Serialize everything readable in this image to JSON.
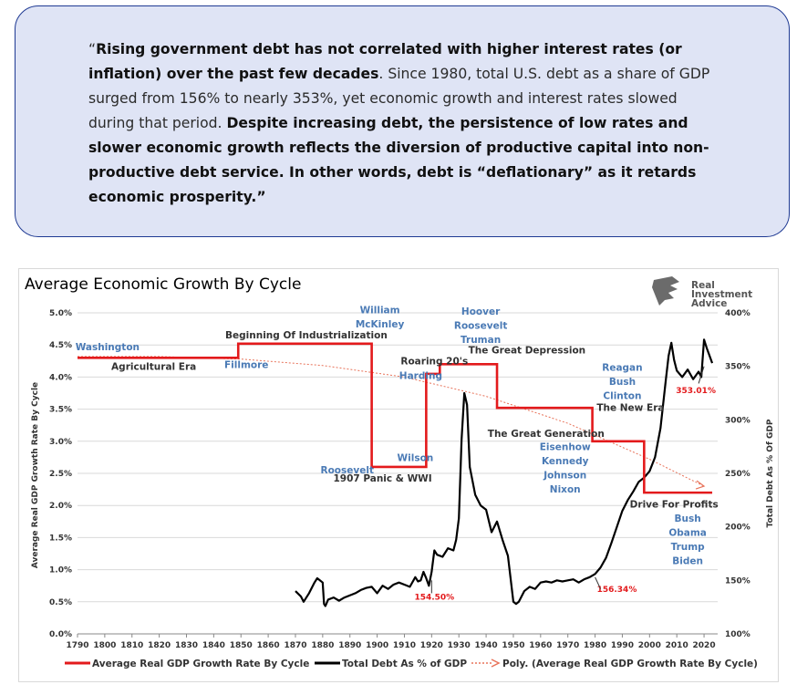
{
  "quote": {
    "open_mark": "“",
    "bold1": "Rising government debt has not correlated with higher interest rates (or inflation) over the past few decades",
    "normal1": ". Since 1980, total U.S. debt as a share of GDP surged from 156% to nearly 353%, yet economic growth and interest rates slowed during that period. ",
    "bold2": "Despite increasing debt, the persistence of low rates and slower economic growth reflects the diversion of productive capital into non-productive debt service. In other words, debt is “deflationary” as it retards economic prosperity.”"
  },
  "logo": {
    "line1": "Real",
    "line2": "Investment",
    "line3": "Advice"
  },
  "colors": {
    "gdp": "#e31a1c",
    "debt": "#000000",
    "poly": "#e8735a",
    "president": "#4a7ab5",
    "era": "#333333",
    "highlight": "#e31a1c"
  },
  "chart_data": {
    "type": "line",
    "title": "Average Economic Growth By Cycle",
    "ylabel": "Average Real GDP Growth Rate By Cycle",
    "y2label": "Total Debt As % Of GDP",
    "xlim": [
      1790,
      2025
    ],
    "ylim": [
      0,
      5
    ],
    "y2lim": [
      100,
      400
    ],
    "x_ticks": [
      "1790",
      "1800",
      "1810",
      "1820",
      "1830",
      "1840",
      "1850",
      "1860",
      "1870",
      "1880",
      "1890",
      "1900",
      "1910",
      "1920",
      "1930",
      "1940",
      "1950",
      "1960",
      "1970",
      "1980",
      "1990",
      "2000",
      "2010",
      "2020"
    ],
    "y_ticks": [
      "0.0%",
      "0.5%",
      "1.0%",
      "1.5%",
      "2.0%",
      "2.5%",
      "3.0%",
      "3.5%",
      "4.0%",
      "4.5%",
      "5.0%"
    ],
    "y2_ticks": [
      "100%",
      "150%",
      "200%",
      "250%",
      "300%",
      "350%",
      "400%"
    ],
    "series": [
      {
        "name": "Average Real GDP Growth Rate By Cycle",
        "axis": "left",
        "step": true,
        "x": [
          1790,
          1849,
          1849,
          1898,
          1898,
          1918,
          1918,
          1923,
          1923,
          1944,
          1944,
          1979,
          1979,
          1998,
          1998,
          2023
        ],
        "y": [
          4.3,
          4.3,
          4.52,
          4.52,
          2.6,
          2.6,
          4.05,
          4.05,
          4.2,
          4.2,
          3.52,
          3.52,
          3.0,
          3.0,
          2.2,
          2.2
        ]
      },
      {
        "name": "Total Debt As % of GDP",
        "axis": "right",
        "x": [
          1870,
          1872,
          1873,
          1875,
          1877,
          1878,
          1880,
          1880.5,
          1881,
          1882,
          1884,
          1886,
          1888,
          1890,
          1892,
          1894,
          1896,
          1898,
          1900,
          1902,
          1904,
          1906,
          1908,
          1910,
          1912,
          1914,
          1915,
          1916,
          1917,
          1918,
          1919,
          1920,
          1921,
          1922,
          1924,
          1926,
          1928,
          1929,
          1930,
          1931,
          1932,
          1933,
          1934,
          1936,
          1938,
          1940,
          1942,
          1944,
          1946,
          1948,
          1950,
          1951,
          1952,
          1954,
          1956,
          1958,
          1960,
          1962,
          1964,
          1966,
          1968,
          1970,
          1972,
          1974,
          1976,
          1978,
          1980,
          1982,
          1984,
          1986,
          1988,
          1990,
          1992,
          1994,
          1996,
          1998,
          2000,
          2002,
          2004,
          2006,
          2007,
          2008,
          2009,
          2010,
          2012,
          2014,
          2016,
          2018,
          2019,
          2020,
          2021,
          2022,
          2023
        ],
        "y": [
          140,
          135,
          130,
          138,
          148,
          152,
          148,
          128,
          126,
          132,
          134,
          131,
          134,
          136,
          138,
          141,
          143,
          144,
          138,
          145,
          142,
          146,
          148,
          146,
          144,
          153,
          149,
          150,
          158,
          152,
          145,
          158,
          178,
          174,
          172,
          180,
          178,
          188,
          208,
          282,
          325,
          314,
          256,
          230,
          220,
          216,
          195,
          205,
          188,
          173,
          130,
          128,
          130,
          140,
          144,
          142,
          148,
          149,
          148,
          150,
          149,
          150,
          151,
          148,
          151,
          153,
          156,
          162,
          171,
          185,
          200,
          215,
          225,
          233,
          242,
          246,
          252,
          265,
          292,
          338,
          360,
          372,
          356,
          346,
          340,
          347,
          338,
          345,
          340,
          375,
          367,
          360,
          353
        ]
      },
      {
        "name": "Poly. (Average Real GDP Growth Rate By Cycle)",
        "axis": "left",
        "style": "dotted-arrow",
        "x": [
          1790,
          1820,
          1850,
          1880,
          1910,
          1940,
          1970,
          2000,
          2020
        ],
        "y": [
          4.32,
          4.32,
          4.28,
          4.18,
          4.0,
          3.7,
          3.28,
          2.72,
          2.3
        ]
      }
    ],
    "era_labels": [
      {
        "text": "Agricultural Era",
        "x": 1818,
        "y": 4.11
      },
      {
        "text": "Beginning Of Industrialization",
        "x": 1874,
        "y": 4.6
      },
      {
        "text": "1907 Panic & WWI",
        "x": 1902,
        "y": 2.37
      },
      {
        "text": "Roaring 20's",
        "x": 1921,
        "y": 4.2
      },
      {
        "text": "The Great Depression",
        "x": 1955,
        "y": 4.37
      },
      {
        "text": "The Great Generation",
        "x": 1962,
        "y": 3.07
      },
      {
        "text": "The New Era",
        "x": 1993,
        "y": 3.47
      },
      {
        "text": "Drive For Profits",
        "x": 2009,
        "y": 1.97
      }
    ],
    "president_labels": [
      {
        "lines": [
          "Washington"
        ],
        "x": 1801,
        "y": 4.42
      },
      {
        "lines": [
          "Fillmore"
        ],
        "x": 1852,
        "y": 4.14
      },
      {
        "lines": [
          "William",
          "McKinley"
        ],
        "x": 1901,
        "y": 4.99
      },
      {
        "lines": [
          "Roosevelt"
        ],
        "x": 1889,
        "y": 2.5
      },
      {
        "lines": [
          "Wilson"
        ],
        "x": 1914,
        "y": 2.69
      },
      {
        "lines": [
          "Harding"
        ],
        "x": 1916,
        "y": 3.97
      },
      {
        "lines": [
          "Hoover",
          "Roosevelt",
          "Truman"
        ],
        "x": 1938,
        "y": 4.97
      },
      {
        "lines": [
          "Eisenhow",
          "Kennedy",
          "Johnson",
          "Nixon"
        ],
        "x": 1969,
        "y": 2.86
      },
      {
        "lines": [
          "Reagan",
          "Bush",
          "Clinton"
        ],
        "x": 1990,
        "y": 4.1
      },
      {
        "lines": [
          "Bush",
          "Obama",
          "Trump",
          "Biden"
        ],
        "x": 2014,
        "y": 1.75
      }
    ],
    "data_labels": [
      {
        "text": "154.50%",
        "x": 1921,
        "y2": 132
      },
      {
        "text": "156.34%",
        "x": 1988,
        "y2": 139
      },
      {
        "text": "353.01%",
        "x": 2017,
        "y2": 325
      }
    ],
    "legend": {
      "position": "bottom"
    }
  }
}
